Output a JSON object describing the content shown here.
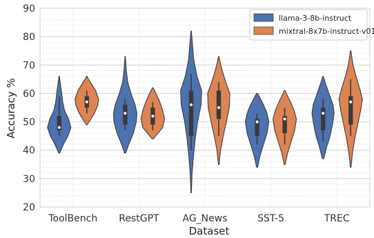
{
  "chart_data": {
    "type": "violin",
    "title": "",
    "xlabel": "Dataset",
    "ylabel": "Accuracy %",
    "ylim": [
      20,
      90
    ],
    "yticks": [
      20,
      30,
      40,
      50,
      60,
      70,
      80,
      90
    ],
    "grid": true,
    "legend_position": "top-right",
    "categories": [
      "ToolBench",
      "RestGPT",
      "AG_News",
      "SST-5",
      "TREC"
    ],
    "series": [
      {
        "name": "llama-3-8b-instruct",
        "color": "#4c72b0",
        "violins": [
          {
            "min": 39,
            "max": 66,
            "q1": 47,
            "median": 48,
            "q3": 52,
            "whisker_low": 45,
            "whisker_high": 59,
            "profile": [
              [
                39,
                0.05
              ],
              [
                42,
                0.35
              ],
              [
                45,
                0.75
              ],
              [
                48,
                1.0
              ],
              [
                51,
                0.8
              ],
              [
                54,
                0.45
              ],
              [
                57,
                0.3
              ],
              [
                60,
                0.22
              ],
              [
                63,
                0.12
              ],
              [
                66,
                0.02
              ]
            ]
          },
          {
            "min": 39,
            "max": 73,
            "q1": 49,
            "median": 53,
            "q3": 56,
            "whisker_low": 47,
            "whisker_high": 58,
            "profile": [
              [
                39,
                0.05
              ],
              [
                42,
                0.3
              ],
              [
                46,
                0.7
              ],
              [
                50,
                0.95
              ],
              [
                53,
                1.0
              ],
              [
                56,
                0.85
              ],
              [
                60,
                0.5
              ],
              [
                64,
                0.22
              ],
              [
                68,
                0.1
              ],
              [
                73,
                0.02
              ]
            ]
          },
          {
            "min": 25,
            "max": 82,
            "q1": 45,
            "median": 56,
            "q3": 61,
            "whisker_low": 40,
            "whisker_high": 67,
            "profile": [
              [
                25,
                0.02
              ],
              [
                32,
                0.08
              ],
              [
                38,
                0.2
              ],
              [
                44,
                0.35
              ],
              [
                50,
                0.55
              ],
              [
                56,
                0.85
              ],
              [
                61,
                0.9
              ],
              [
                66,
                0.5
              ],
              [
                72,
                0.22
              ],
              [
                78,
                0.1
              ],
              [
                82,
                0.02
              ]
            ]
          },
          {
            "min": 34,
            "max": 60,
            "q1": 45,
            "median": 50,
            "q3": 51,
            "whisker_low": 42,
            "whisker_high": 53,
            "profile": [
              [
                34,
                0.04
              ],
              [
                38,
                0.25
              ],
              [
                42,
                0.55
              ],
              [
                46,
                0.85
              ],
              [
                50,
                1.0
              ],
              [
                53,
                0.85
              ],
              [
                56,
                0.55
              ],
              [
                58,
                0.3
              ],
              [
                60,
                0.05
              ]
            ]
          },
          {
            "min": 37,
            "max": 66,
            "q1": 47,
            "median": 53,
            "q3": 55,
            "whisker_low": 43,
            "whisker_high": 58,
            "profile": [
              [
                37,
                0.05
              ],
              [
                41,
                0.3
              ],
              [
                45,
                0.6
              ],
              [
                49,
                0.8
              ],
              [
                53,
                0.95
              ],
              [
                56,
                0.85
              ],
              [
                60,
                0.5
              ],
              [
                63,
                0.25
              ],
              [
                66,
                0.02
              ]
            ]
          }
        ]
      },
      {
        "name": "mixtral-8x7b-instruct-v01",
        "color": "#dd8452",
        "violins": [
          {
            "min": 49,
            "max": 66,
            "q1": 55,
            "median": 57,
            "q3": 59,
            "whisker_low": 53,
            "whisker_high": 61,
            "profile": [
              [
                49,
                0.04
              ],
              [
                51,
                0.35
              ],
              [
                53,
                0.65
              ],
              [
                56,
                0.95
              ],
              [
                58,
                1.0
              ],
              [
                61,
                0.75
              ],
              [
                63,
                0.45
              ],
              [
                65,
                0.15
              ],
              [
                66,
                0.02
              ]
            ]
          },
          {
            "min": 44,
            "max": 62,
            "q1": 49,
            "median": 52,
            "q3": 55,
            "whisker_low": 47,
            "whisker_high": 57,
            "profile": [
              [
                44,
                0.05
              ],
              [
                46,
                0.45
              ],
              [
                48,
                0.85
              ],
              [
                51,
                1.0
              ],
              [
                54,
                0.85
              ],
              [
                57,
                0.6
              ],
              [
                59,
                0.38
              ],
              [
                61,
                0.15
              ],
              [
                62,
                0.02
              ]
            ]
          },
          {
            "min": 35,
            "max": 73,
            "q1": 51,
            "median": 55,
            "q3": 61,
            "whisker_low": 45,
            "whisker_high": 64,
            "profile": [
              [
                35,
                0.03
              ],
              [
                40,
                0.15
              ],
              [
                45,
                0.38
              ],
              [
                50,
                0.65
              ],
              [
                55,
                0.9
              ],
              [
                60,
                0.95
              ],
              [
                64,
                0.6
              ],
              [
                68,
                0.3
              ],
              [
                71,
                0.12
              ],
              [
                73,
                0.02
              ]
            ]
          },
          {
            "min": 35,
            "max": 61,
            "q1": 46,
            "median": 51,
            "q3": 52,
            "whisker_low": 42,
            "whisker_high": 55,
            "profile": [
              [
                35,
                0.04
              ],
              [
                39,
                0.25
              ],
              [
                43,
                0.55
              ],
              [
                47,
                0.85
              ],
              [
                51,
                1.0
              ],
              [
                54,
                0.8
              ],
              [
                57,
                0.5
              ],
              [
                59,
                0.25
              ],
              [
                61,
                0.03
              ]
            ]
          },
          {
            "min": 34,
            "max": 75,
            "q1": 49,
            "median": 57,
            "q3": 59,
            "whisker_low": 45,
            "whisker_high": 65,
            "profile": [
              [
                34,
                0.03
              ],
              [
                39,
                0.15
              ],
              [
                44,
                0.35
              ],
              [
                49,
                0.6
              ],
              [
                54,
                0.85
              ],
              [
                58,
                1.0
              ],
              [
                62,
                0.75
              ],
              [
                66,
                0.45
              ],
              [
                70,
                0.2
              ],
              [
                75,
                0.02
              ]
            ]
          }
        ]
      }
    ]
  }
}
